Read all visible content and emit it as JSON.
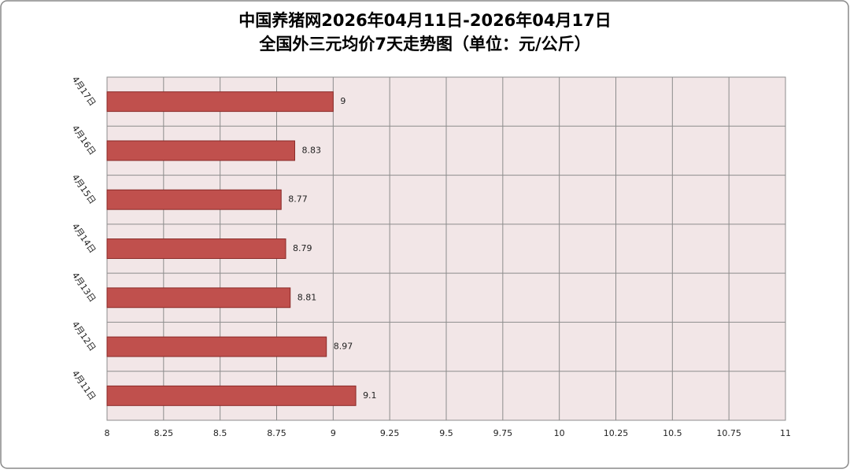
{
  "chart_data": {
    "type": "hbar",
    "title": "中国养猪网2026年04月11日-2026年04月17日",
    "subtitle": "全国外三元均价7天走势图（单位：元/公斤）",
    "categories": [
      "4月17日",
      "4月16日",
      "4月15日",
      "4月14日",
      "4月13日",
      "4月12日",
      "4月11日"
    ],
    "values": [
      9,
      8.83,
      8.77,
      8.79,
      8.81,
      8.97,
      9.1
    ],
    "color": "#c0504d",
    "xlim": [
      8,
      11
    ],
    "xticks": [
      8,
      8.25,
      8.5,
      8.75,
      9,
      9.25,
      9.5,
      9.75,
      10,
      10.25,
      10.5,
      10.75,
      11
    ],
    "grid": true
  }
}
